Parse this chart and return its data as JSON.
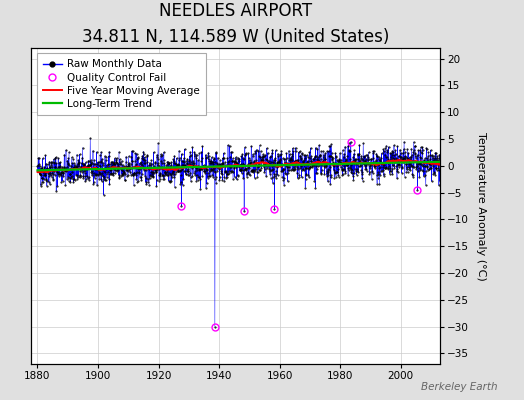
{
  "title": "NEEDLES AIRPORT",
  "subtitle": "34.811 N, 114.589 W (United States)",
  "ylabel": "Temperature Anomaly (°C)",
  "xlim": [
    1878,
    2013
  ],
  "ylim": [
    -37,
    22
  ],
  "yticks": [
    -35,
    -30,
    -25,
    -20,
    -15,
    -10,
    -5,
    0,
    5,
    10,
    15,
    20
  ],
  "xticks": [
    1880,
    1900,
    1920,
    1940,
    1960,
    1980,
    2000
  ],
  "seed": 42,
  "raw_color": "#0000ff",
  "qc_fail_color": "#ff00ff",
  "moving_avg_color": "#ff0000",
  "trend_color": "#00bb00",
  "background_color": "#e0e0e0",
  "plot_bg_color": "#ffffff",
  "grid_color": "#cccccc",
  "watermark": "Berkeley Earth",
  "title_fontsize": 12,
  "subtitle_fontsize": 8.5,
  "ylabel_fontsize": 8,
  "legend_fontsize": 7.5,
  "noise_std": 1.5,
  "trend_slope": 0.012,
  "big_dip_year": 1938,
  "big_dip_month": 7,
  "big_dip_value": -30,
  "qc_years": [
    1927,
    1938,
    1948,
    1958,
    1983,
    2005
  ],
  "qc_months": [
    6,
    7,
    3,
    3,
    6,
    6
  ],
  "qc_values": [
    -7.5,
    -30,
    -8.5,
    -8.0,
    4.5,
    -4.5
  ]
}
